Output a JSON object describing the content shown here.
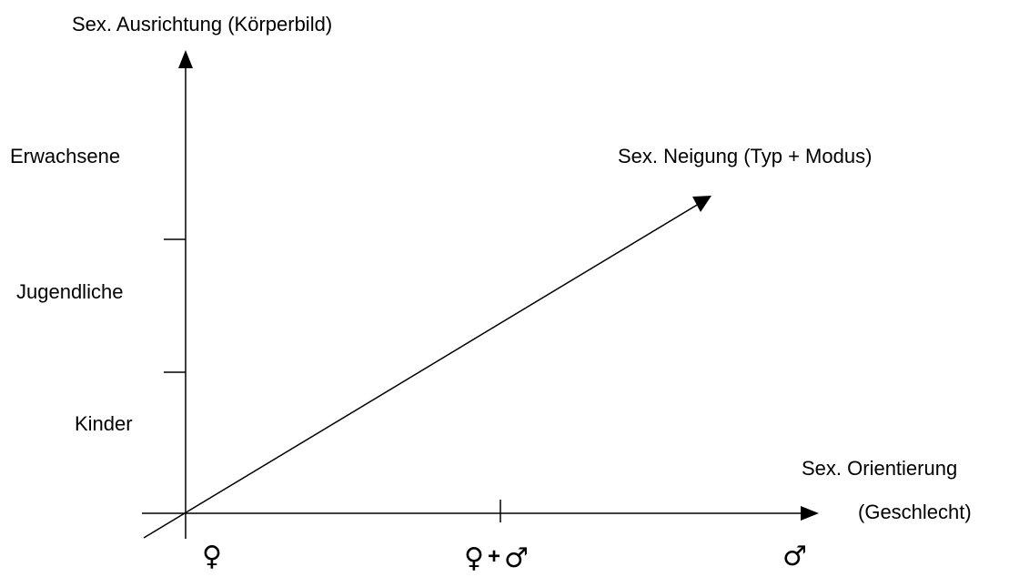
{
  "y_axis": {
    "title": "Sex. Ausrichtung (Körperbild)",
    "levels": [
      "Erwachsene",
      "Jugendliche",
      "Kinder"
    ]
  },
  "x_axis": {
    "title_line1": "Sex. Orientierung",
    "title_line2": "(Geschlecht)",
    "marks": {
      "left": "♀",
      "middle_a": "♀",
      "middle_plus": "+",
      "middle_b": "♂",
      "right": "♂"
    }
  },
  "diagonal": {
    "label": "Sex. Neigung (Typ + Modus)"
  },
  "colors": {
    "ink": "#000000",
    "background": "#ffffff"
  }
}
